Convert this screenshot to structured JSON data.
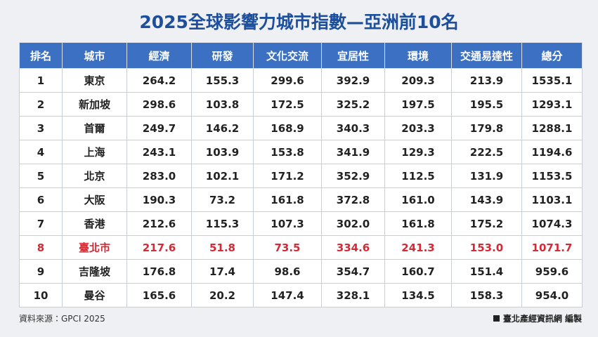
{
  "header": {
    "title": "2025全球影響力城市指數—亞洲前10名"
  },
  "table": {
    "columns": [
      "排名",
      "城市",
      "經濟",
      "研發",
      "文化交流",
      "宜居性",
      "環境",
      "交通易達性",
      "總分"
    ],
    "rows": [
      [
        "1",
        "東京",
        "264.2",
        "155.3",
        "299.6",
        "392.9",
        "209.3",
        "213.9",
        "1535.1"
      ],
      [
        "2",
        "新加坡",
        "298.6",
        "103.8",
        "172.5",
        "325.2",
        "197.5",
        "195.5",
        "1293.1"
      ],
      [
        "3",
        "首爾",
        "249.7",
        "146.2",
        "168.9",
        "340.3",
        "203.3",
        "179.8",
        "1288.1"
      ],
      [
        "4",
        "上海",
        "243.1",
        "103.9",
        "153.8",
        "341.9",
        "129.3",
        "222.5",
        "1194.6"
      ],
      [
        "5",
        "北京",
        "283.0",
        "102.1",
        "171.2",
        "352.9",
        "112.5",
        "131.9",
        "1153.5"
      ],
      [
        "6",
        "大阪",
        "190.3",
        "73.2",
        "161.8",
        "372.8",
        "161.0",
        "143.9",
        "1103.1"
      ],
      [
        "7",
        "香港",
        "212.6",
        "115.3",
        "107.3",
        "302.0",
        "161.8",
        "175.2",
        "1074.3"
      ],
      [
        "8",
        "臺北市",
        "217.6",
        "51.8",
        "73.5",
        "334.6",
        "241.3",
        "153.0",
        "1071.7"
      ],
      [
        "9",
        "吉隆坡",
        "176.8",
        "17.4",
        "98.6",
        "354.7",
        "160.7",
        "151.4",
        "959.6"
      ],
      [
        "10",
        "曼谷",
        "165.6",
        "20.2",
        "147.4",
        "328.1",
        "134.5",
        "158.3",
        "954.0"
      ]
    ]
  },
  "footer": {
    "source": "資料來源：GPCI 2025",
    "credit": "臺北產經資訊網 編製"
  }
}
